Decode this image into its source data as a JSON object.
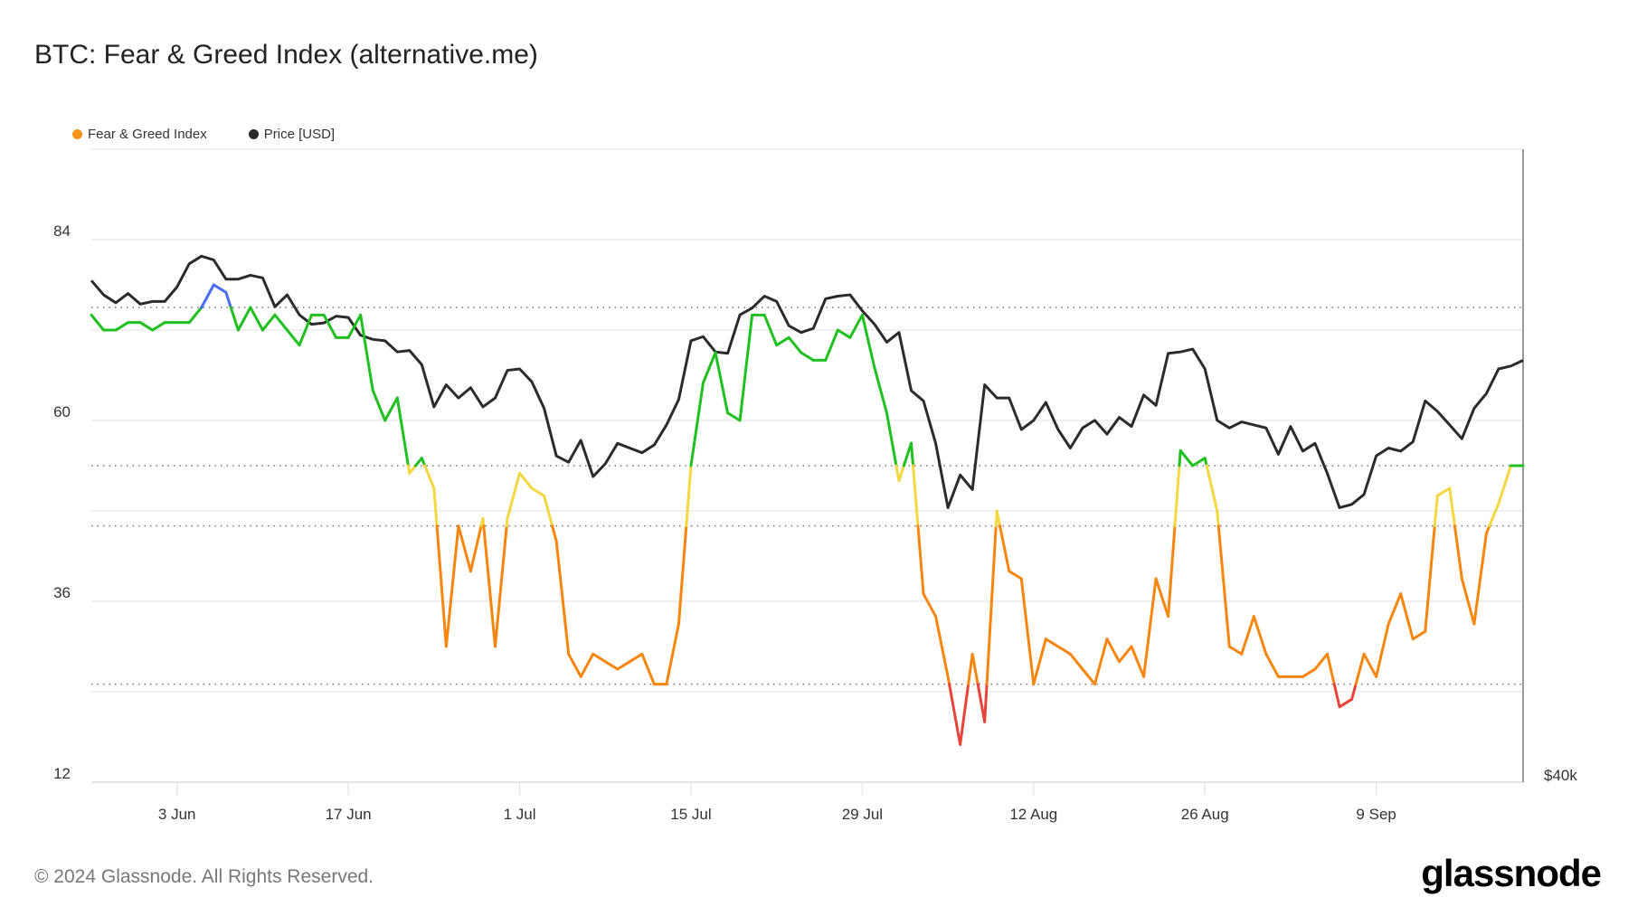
{
  "title": "BTC: Fear & Greed Index (alternative.me)",
  "legend": [
    {
      "label": "Fear & Greed Index",
      "color": "#f7931a"
    },
    {
      "label": "Price [USD]",
      "color": "#2b2b2b"
    }
  ],
  "footer": "© 2024 Glassnode. All Rights Reserved.",
  "logo": "glassnode",
  "chart_data": {
    "type": "line",
    "title": "BTC: Fear & Greed Index (alternative.me)",
    "x_start": "2024-05-27",
    "x_ticks": [
      {
        "label": "3 Jun",
        "day": 7
      },
      {
        "label": "17 Jun",
        "day": 21
      },
      {
        "label": "1 Jul",
        "day": 35
      },
      {
        "label": "15 Jul",
        "day": 49
      },
      {
        "label": "29 Jul",
        "day": 63
      },
      {
        "label": "12 Aug",
        "day": 77
      },
      {
        "label": "26 Aug",
        "day": 91
      },
      {
        "label": "9 Sep",
        "day": 105
      }
    ],
    "y_left": {
      "range": [
        12,
        96
      ],
      "ticks": [
        "12",
        "36",
        "60",
        "84"
      ],
      "grid": [
        12,
        24,
        36,
        48,
        60,
        72,
        84
      ]
    },
    "y_right": {
      "scale": "log",
      "range": [
        40000,
        80600
      ],
      "ticks": [
        {
          "label": "$40k",
          "value": 40000
        }
      ]
    },
    "thresholds": [
      25,
      46,
      54,
      75
    ],
    "zone_colors": {
      "extreme_fear": "#e8423a",
      "fear": "#f7860f",
      "neutral": "#f5d742",
      "greed": "#1fc01f",
      "extreme_greed": "#4a6cf7"
    },
    "series": [
      {
        "name": "Fear & Greed Index",
        "axis": "left",
        "values": [
          74,
          72,
          72,
          73,
          73,
          72,
          73,
          73,
          73,
          75,
          78,
          77,
          72,
          75,
          72,
          74,
          72,
          70,
          74,
          74,
          71,
          71,
          74,
          64,
          60,
          63,
          53,
          55,
          51,
          30,
          46,
          40,
          47,
          30,
          47,
          53,
          51,
          50,
          44,
          29,
          26,
          29,
          28,
          27,
          28,
          29,
          25,
          25,
          33,
          54,
          65,
          69,
          61,
          60,
          74,
          74,
          70,
          71,
          69,
          68,
          68,
          72,
          71,
          74,
          67,
          61,
          52,
          57,
          37,
          34,
          26,
          17,
          29,
          20,
          48,
          40,
          39,
          25,
          31,
          30,
          29,
          27,
          25,
          31,
          28,
          30,
          26,
          39,
          34,
          56,
          54,
          55,
          48,
          30,
          29,
          34,
          29,
          26,
          26,
          26,
          27,
          29,
          22,
          23,
          29,
          26,
          33,
          37,
          31,
          32,
          50,
          51,
          39,
          33,
          45,
          49,
          54,
          54
        ]
      },
      {
        "name": "Price [USD]",
        "axis": "right",
        "color": "#2b2b2b",
        "values": [
          69700,
          68600,
          68000,
          68700,
          67900,
          68100,
          68100,
          69200,
          71000,
          71600,
          71300,
          69800,
          69800,
          70100,
          69900,
          67700,
          68600,
          67100,
          66400,
          66500,
          67000,
          66900,
          65600,
          65300,
          65200,
          64400,
          64500,
          63500,
          60600,
          62100,
          61200,
          61900,
          60600,
          61200,
          63100,
          63200,
          62300,
          60500,
          57400,
          57000,
          58400,
          56100,
          56900,
          58200,
          57900,
          57600,
          58100,
          59400,
          61100,
          65200,
          65500,
          64400,
          64300,
          67100,
          67600,
          68500,
          68100,
          66300,
          65800,
          66100,
          68300,
          68500,
          68600,
          67400,
          66400,
          65100,
          65800,
          61700,
          61000,
          58200,
          54200,
          56200,
          55300,
          62100,
          61200,
          61200,
          59100,
          59700,
          60900,
          59100,
          57900,
          59200,
          59700,
          58800,
          59900,
          59300,
          61400,
          60700,
          64300,
          64400,
          64600,
          63200,
          59700,
          59200,
          59600,
          59400,
          59200,
          57500,
          59300,
          57700,
          58200,
          56300,
          54200,
          54400,
          55000,
          57400,
          57900,
          57700,
          58300,
          61000,
          60300,
          59400,
          58500,
          60500,
          61500,
          63200,
          63400,
          63800
        ]
      }
    ]
  }
}
